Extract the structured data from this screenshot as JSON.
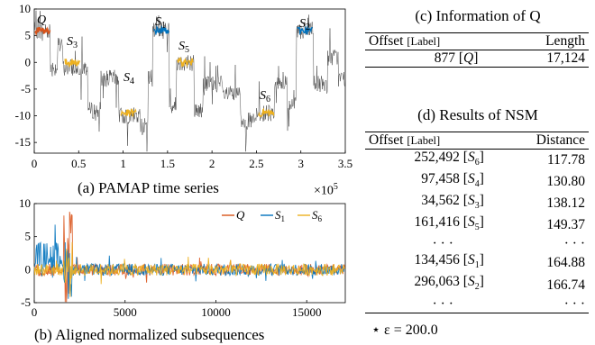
{
  "figure_a": {
    "caption": "(a) PAMAP time series",
    "exponent": "×10",
    "exponent_power": "5",
    "series_color": "#4d4d4d",
    "highlight_colors": {
      "Q": "#d95319",
      "S_blue": "#0072bd",
      "S_orange": "#edb120"
    },
    "markers": [
      {
        "label": "Q",
        "sub": ""
      },
      {
        "label": "S",
        "sub": "3"
      },
      {
        "label": "S",
        "sub": "4"
      },
      {
        "label": "S",
        "sub": "1"
      },
      {
        "label": "S",
        "sub": "5"
      },
      {
        "label": "S",
        "sub": "6"
      },
      {
        "label": "S",
        "sub": "2"
      }
    ]
  },
  "figure_b": {
    "caption": "(b) Aligned normalized subsequences",
    "legend": [
      {
        "label": "Q",
        "sub": "",
        "color": "#d95319"
      },
      {
        "label": "S",
        "sub": "1",
        "color": "#0072bd"
      },
      {
        "label": "S",
        "sub": "6",
        "color": "#edb120"
      }
    ]
  },
  "chart_data": [
    {
      "type": "line",
      "x_ticks": [
        "0",
        "0.5",
        "1",
        "1.5",
        "2",
        "2.5",
        "3",
        "3.5"
      ],
      "y_ticks": [
        "10",
        "5",
        "0",
        "-5",
        "-10",
        "-15"
      ],
      "xlim": [
        0,
        350000
      ],
      "ylim": [
        -17,
        10
      ],
      "segments": [
        {
          "name": "Q",
          "x_start": 877,
          "x_end": 18001,
          "level": 6,
          "color": "#d95319"
        },
        {
          "name": "S3",
          "x_start": 34562,
          "x_end": 51686,
          "level": 0,
          "color": "#edb120"
        },
        {
          "name": "S4",
          "x_start": 97458,
          "x_end": 114582,
          "level": -9.5,
          "color": "#edb120"
        },
        {
          "name": "S1",
          "x_start": 134456,
          "x_end": 151580,
          "level": 6,
          "color": "#0072bd"
        },
        {
          "name": "S5",
          "x_start": 161416,
          "x_end": 178540,
          "level": 0,
          "color": "#edb120"
        },
        {
          "name": "S6",
          "x_start": 252492,
          "x_end": 269616,
          "level": -9.5,
          "color": "#edb120"
        },
        {
          "name": "S2",
          "x_start": 296063,
          "x_end": 313187,
          "level": 6,
          "color": "#0072bd"
        }
      ]
    },
    {
      "type": "line",
      "x_ticks": [
        "0",
        "5000",
        "10000",
        "15000"
      ],
      "y_ticks": [
        "10",
        "5",
        "0",
        "-5"
      ],
      "xlim": [
        0,
        17124
      ],
      "ylim": [
        -5,
        10
      ],
      "series": [
        {
          "name": "Q",
          "color": "#d95319"
        },
        {
          "name": "S1",
          "color": "#0072bd"
        },
        {
          "name": "S6",
          "color": "#edb120"
        }
      ]
    }
  ],
  "table_c": {
    "title": "(c) Information of Q",
    "headers": [
      "Offset",
      "[Label]",
      "Length"
    ],
    "row": {
      "offset": "877",
      "label": "Q",
      "value": "17,124"
    }
  },
  "table_d": {
    "title": "(d) Results of NSM",
    "headers": [
      "Offset",
      "[Label]",
      "Distance"
    ],
    "rows": [
      {
        "offset": "252,492",
        "label": "S",
        "sub": "6",
        "value": "117.78"
      },
      {
        "offset": "97,458",
        "label": "S",
        "sub": "4",
        "value": "130.80"
      },
      {
        "offset": "34,562",
        "label": "S",
        "sub": "3",
        "value": "138.12"
      },
      {
        "offset": "161,416",
        "label": "S",
        "sub": "5",
        "value": "149.37"
      },
      {
        "offset": "· · ·",
        "label": "",
        "sub": "",
        "value": "· · ·"
      },
      {
        "offset": "134,456",
        "label": "S",
        "sub": "1",
        "value": "164.88"
      },
      {
        "offset": "296,063",
        "label": "S",
        "sub": "2",
        "value": "166.74"
      },
      {
        "offset": "· · ·",
        "label": "",
        "sub": "",
        "value": "· · ·"
      }
    ],
    "footnote": "⋆  ε = 200.0"
  }
}
